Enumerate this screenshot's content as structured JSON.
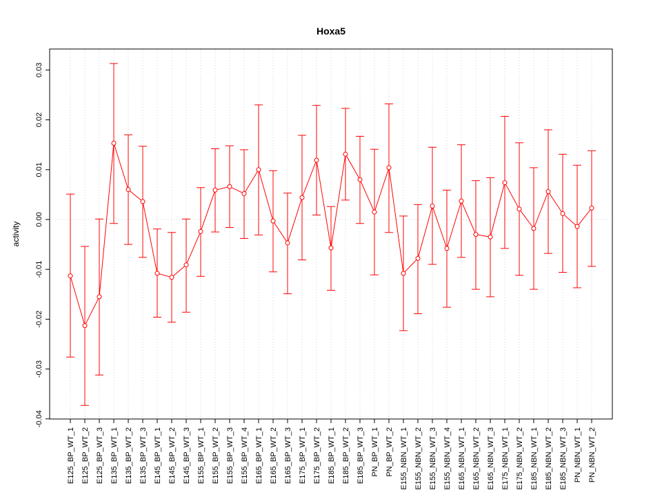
{
  "chart_data": {
    "type": "line",
    "title": "Hoxa5",
    "xlabel": "",
    "ylabel": "activity",
    "ylim": [
      -0.04,
      0.034
    ],
    "yticks": [
      -0.04,
      -0.03,
      -0.02,
      -0.01,
      0.0,
      0.01,
      0.02,
      0.03
    ],
    "ytick_labels": [
      "-0.04",
      "-0.03",
      "-0.02",
      "-0.01",
      "0.00",
      "0.01",
      "0.02",
      "0.03"
    ],
    "grid": true,
    "colors": {
      "series": "#ff0000",
      "grid": "#d3d3d3",
      "axis": "#000000"
    },
    "categories": [
      "E125_BP_WT_1",
      "E125_BP_WT_2",
      "E125_BP_WT_3",
      "E135_BP_WT_1",
      "E135_BP_WT_2",
      "E135_BP_WT_3",
      "E145_BP_WT_1",
      "E145_BP_WT_2",
      "E145_BP_WT_3",
      "E155_BP_WT_1",
      "E155_BP_WT_2",
      "E155_BP_WT_3",
      "E155_BP_WT_4",
      "E165_BP_WT_1",
      "E165_BP_WT_2",
      "E165_BP_WT_3",
      "E175_BP_WT_1",
      "E175_BP_WT_2",
      "E185_BP_WT_1",
      "E185_BP_WT_2",
      "E185_BP_WT_3",
      "PN_BP_WT_1",
      "PN_BP_WT_2",
      "E155_NBN_WT_1",
      "E155_NBN_WT_2",
      "E155_NBN_WT_3",
      "E155_NBN_WT_4",
      "E165_NBN_WT_1",
      "E165_NBN_WT_2",
      "E165_NBN_WT_3",
      "E175_NBN_WT_1",
      "E175_NBN_WT_2",
      "E185_NBN_WT_1",
      "E185_NBN_WT_2",
      "E185_NBN_WT_3",
      "PN_NBN_WT_1",
      "PN_NBN_WT_2"
    ],
    "values": [
      -0.0113,
      -0.0213,
      -0.0155,
      0.0153,
      0.006,
      0.0036,
      -0.0108,
      -0.0116,
      -0.0091,
      -0.0024,
      0.0059,
      0.0066,
      0.0052,
      0.01,
      -0.0003,
      -0.0047,
      0.0044,
      0.0119,
      -0.0057,
      0.0131,
      0.008,
      0.0015,
      0.0104,
      -0.0108,
      -0.0078,
      0.0027,
      -0.0058,
      0.0037,
      -0.003,
      -0.0035,
      0.0074,
      0.0021,
      -0.0018,
      0.0056,
      0.0012,
      -0.0014,
      0.0023
    ],
    "err_upper": [
      0.0051,
      -0.0054,
      0.0001,
      0.0313,
      0.017,
      0.0147,
      -0.0019,
      -0.0026,
      0.0001,
      0.0064,
      0.0142,
      0.0148,
      0.014,
      0.023,
      0.0098,
      0.0053,
      0.0169,
      0.0229,
      0.0026,
      0.0223,
      0.0167,
      0.0141,
      0.0232,
      0.0007,
      0.003,
      0.0145,
      0.0059,
      0.015,
      0.0078,
      0.0084,
      0.0207,
      0.0154,
      0.0104,
      0.018,
      0.0131,
      0.0109,
      0.0138
    ],
    "err_lower": [
      -0.0276,
      -0.0373,
      -0.0312,
      -0.0008,
      -0.005,
      -0.0076,
      -0.0196,
      -0.0206,
      -0.0186,
      -0.0114,
      -0.0025,
      -0.0016,
      -0.0038,
      -0.0031,
      -0.0105,
      -0.0149,
      -0.0081,
      0.0009,
      -0.0142,
      0.0039,
      -0.0008,
      -0.0111,
      -0.0026,
      -0.0223,
      -0.0189,
      -0.009,
      -0.0176,
      -0.0076,
      -0.014,
      -0.0155,
      -0.0058,
      -0.0112,
      -0.014,
      -0.0068,
      -0.0106,
      -0.0137,
      -0.0094
    ]
  }
}
